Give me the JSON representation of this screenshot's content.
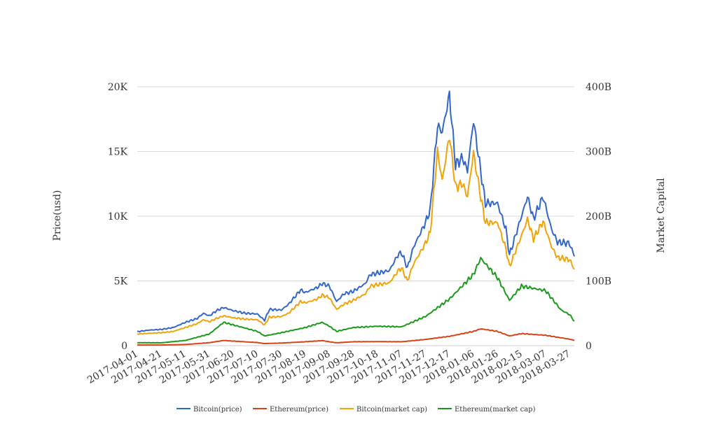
{
  "chart_data": {
    "type": "line",
    "title": "",
    "y_left_label": "Price(usd)",
    "y_right_label": "Market Capital",
    "ylim_left": [
      0,
      20000
    ],
    "ylim_right": [
      0,
      400
    ],
    "y_left_ticks": [
      "0",
      "5K",
      "10K",
      "15K",
      "20K"
    ],
    "y_right_ticks": [
      "0",
      "100B",
      "200B",
      "300B",
      "400B"
    ],
    "x_ticks": [
      "2017-04-01",
      "2017-04-21",
      "2017-05-11",
      "2017-05-31",
      "2017-06-20",
      "2017-07-10",
      "2017-07-30",
      "2017-08-19",
      "2017-09-08",
      "2017-09-28",
      "2017-10-18",
      "2017-11-07",
      "2017-11-27",
      "2017-12-17",
      "2018-01-06",
      "2018-01-26",
      "2018-02-15",
      "2018-03-07",
      "2018-03-27"
    ],
    "grid": true,
    "legend_position": "bottom",
    "series": [
      {
        "name": "Bitcoin(price)",
        "axis": "left",
        "color": "#3366cc",
        "points": [
          [
            "2017-04-01",
            1080
          ],
          [
            "2017-04-11",
            1200
          ],
          [
            "2017-04-21",
            1250
          ],
          [
            "2017-05-01",
            1400
          ],
          [
            "2017-05-11",
            1800
          ],
          [
            "2017-05-21",
            2100
          ],
          [
            "2017-05-26",
            2500
          ],
          [
            "2017-05-31",
            2300
          ],
          [
            "2017-06-06",
            2700
          ],
          [
            "2017-06-12",
            2950
          ],
          [
            "2017-06-20",
            2700
          ],
          [
            "2017-06-30",
            2500
          ],
          [
            "2017-07-10",
            2450
          ],
          [
            "2017-07-16",
            1950
          ],
          [
            "2017-07-20",
            2800
          ],
          [
            "2017-07-30",
            2750
          ],
          [
            "2017-08-05",
            3200
          ],
          [
            "2017-08-15",
            4300
          ],
          [
            "2017-08-19",
            4100
          ],
          [
            "2017-08-29",
            4500
          ],
          [
            "2017-09-02",
            4800
          ],
          [
            "2017-09-08",
            4600
          ],
          [
            "2017-09-14",
            3400
          ],
          [
            "2017-09-20",
            4000
          ],
          [
            "2017-09-28",
            4200
          ],
          [
            "2017-10-08",
            4800
          ],
          [
            "2017-10-12",
            5500
          ],
          [
            "2017-10-18",
            5600
          ],
          [
            "2017-10-28",
            5800
          ],
          [
            "2017-11-04",
            7000
          ],
          [
            "2017-11-07",
            7200
          ],
          [
            "2017-11-12",
            6000
          ],
          [
            "2017-11-17",
            7600
          ],
          [
            "2017-11-27",
            9500
          ],
          [
            "2017-12-01",
            10500
          ],
          [
            "2017-12-07",
            17000
          ],
          [
            "2017-12-11",
            16500
          ],
          [
            "2017-12-17",
            19400
          ],
          [
            "2017-12-22",
            14000
          ],
          [
            "2017-12-28",
            14500
          ],
          [
            "2018-01-01",
            13500
          ],
          [
            "2018-01-06",
            17400
          ],
          [
            "2018-01-12",
            13500
          ],
          [
            "2018-01-16",
            11000
          ],
          [
            "2018-01-26",
            11000
          ],
          [
            "2018-02-02",
            9000
          ],
          [
            "2018-02-05",
            7000
          ],
          [
            "2018-02-15",
            10000
          ],
          [
            "2018-02-20",
            11500
          ],
          [
            "2018-02-25",
            9800
          ],
          [
            "2018-03-05",
            11500
          ],
          [
            "2018-03-12",
            9000
          ],
          [
            "2018-03-17",
            8000
          ],
          [
            "2018-03-27",
            7900
          ],
          [
            "2018-03-31",
            6900
          ]
        ]
      },
      {
        "name": "Ethereum(price)",
        "axis": "left",
        "color": "#d84315",
        "points": [
          [
            "2017-04-01",
            50
          ],
          [
            "2017-04-21",
            48
          ],
          [
            "2017-05-11",
            88
          ],
          [
            "2017-05-31",
            230
          ],
          [
            "2017-06-12",
            400
          ],
          [
            "2017-06-20",
            350
          ],
          [
            "2017-07-10",
            240
          ],
          [
            "2017-07-16",
            160
          ],
          [
            "2017-07-30",
            200
          ],
          [
            "2017-08-19",
            300
          ],
          [
            "2017-09-02",
            390
          ],
          [
            "2017-09-08",
            300
          ],
          [
            "2017-09-14",
            220
          ],
          [
            "2017-09-28",
            300
          ],
          [
            "2017-10-18",
            310
          ],
          [
            "2017-11-07",
            300
          ],
          [
            "2017-11-27",
            480
          ],
          [
            "2017-12-17",
            720
          ],
          [
            "2018-01-06",
            1100
          ],
          [
            "2018-01-12",
            1300
          ],
          [
            "2018-01-26",
            1100
          ],
          [
            "2018-02-05",
            750
          ],
          [
            "2018-02-15",
            930
          ],
          [
            "2018-03-07",
            800
          ],
          [
            "2018-03-27",
            500
          ],
          [
            "2018-03-31",
            400
          ]
        ]
      },
      {
        "name": "Bitcoin(market cap)",
        "axis": "right",
        "color": "#f0a30a",
        "points": [
          [
            "2017-04-01",
            18
          ],
          [
            "2017-04-11",
            19
          ],
          [
            "2017-04-21",
            20
          ],
          [
            "2017-05-01",
            22
          ],
          [
            "2017-05-11",
            28
          ],
          [
            "2017-05-21",
            34
          ],
          [
            "2017-05-26",
            40
          ],
          [
            "2017-05-31",
            37
          ],
          [
            "2017-06-06",
            42
          ],
          [
            "2017-06-12",
            46
          ],
          [
            "2017-06-20",
            43
          ],
          [
            "2017-06-30",
            41
          ],
          [
            "2017-07-10",
            40
          ],
          [
            "2017-07-16",
            32
          ],
          [
            "2017-07-20",
            44
          ],
          [
            "2017-07-30",
            45
          ],
          [
            "2017-08-05",
            50
          ],
          [
            "2017-08-15",
            68
          ],
          [
            "2017-08-19",
            66
          ],
          [
            "2017-08-29",
            72
          ],
          [
            "2017-09-02",
            78
          ],
          [
            "2017-09-08",
            74
          ],
          [
            "2017-09-14",
            56
          ],
          [
            "2017-09-20",
            64
          ],
          [
            "2017-09-28",
            70
          ],
          [
            "2017-10-08",
            80
          ],
          [
            "2017-10-12",
            92
          ],
          [
            "2017-10-18",
            94
          ],
          [
            "2017-10-28",
            97
          ],
          [
            "2017-11-04",
            115
          ],
          [
            "2017-11-07",
            120
          ],
          [
            "2017-11-12",
            100
          ],
          [
            "2017-11-17",
            126
          ],
          [
            "2017-11-27",
            158
          ],
          [
            "2017-12-01",
            175
          ],
          [
            "2017-12-07",
            300
          ],
          [
            "2017-12-11",
            255
          ],
          [
            "2017-12-17",
            325
          ],
          [
            "2017-12-22",
            245
          ],
          [
            "2017-12-28",
            250
          ],
          [
            "2018-01-01",
            230
          ],
          [
            "2018-01-06",
            298
          ],
          [
            "2018-01-12",
            230
          ],
          [
            "2018-01-16",
            190
          ],
          [
            "2018-01-26",
            190
          ],
          [
            "2018-02-02",
            150
          ],
          [
            "2018-02-05",
            122
          ],
          [
            "2018-02-15",
            170
          ],
          [
            "2018-02-20",
            195
          ],
          [
            "2018-02-25",
            165
          ],
          [
            "2018-03-05",
            192
          ],
          [
            "2018-03-12",
            153
          ],
          [
            "2018-03-17",
            136
          ],
          [
            "2018-03-27",
            133
          ],
          [
            "2018-03-31",
            118
          ]
        ]
      },
      {
        "name": "Ethereum(market cap)",
        "axis": "right",
        "color": "#1a9a1a",
        "points": [
          [
            "2017-04-01",
            4.5
          ],
          [
            "2017-04-21",
            4.4
          ],
          [
            "2017-05-11",
            8
          ],
          [
            "2017-05-31",
            18
          ],
          [
            "2017-06-12",
            36
          ],
          [
            "2017-06-20",
            32
          ],
          [
            "2017-07-10",
            22
          ],
          [
            "2017-07-16",
            15
          ],
          [
            "2017-07-30",
            20
          ],
          [
            "2017-08-19",
            28
          ],
          [
            "2017-09-02",
            36
          ],
          [
            "2017-09-08",
            30
          ],
          [
            "2017-09-14",
            22
          ],
          [
            "2017-09-28",
            28
          ],
          [
            "2017-10-18",
            30
          ],
          [
            "2017-11-07",
            29
          ],
          [
            "2017-11-27",
            45
          ],
          [
            "2017-12-17",
            72
          ],
          [
            "2018-01-06",
            110
          ],
          [
            "2018-01-12",
            135
          ],
          [
            "2018-01-26",
            105
          ],
          [
            "2018-02-05",
            70
          ],
          [
            "2018-02-15",
            92
          ],
          [
            "2018-03-07",
            85
          ],
          [
            "2018-03-20",
            55
          ],
          [
            "2018-03-27",
            48
          ],
          [
            "2018-03-31",
            38
          ]
        ]
      }
    ]
  }
}
